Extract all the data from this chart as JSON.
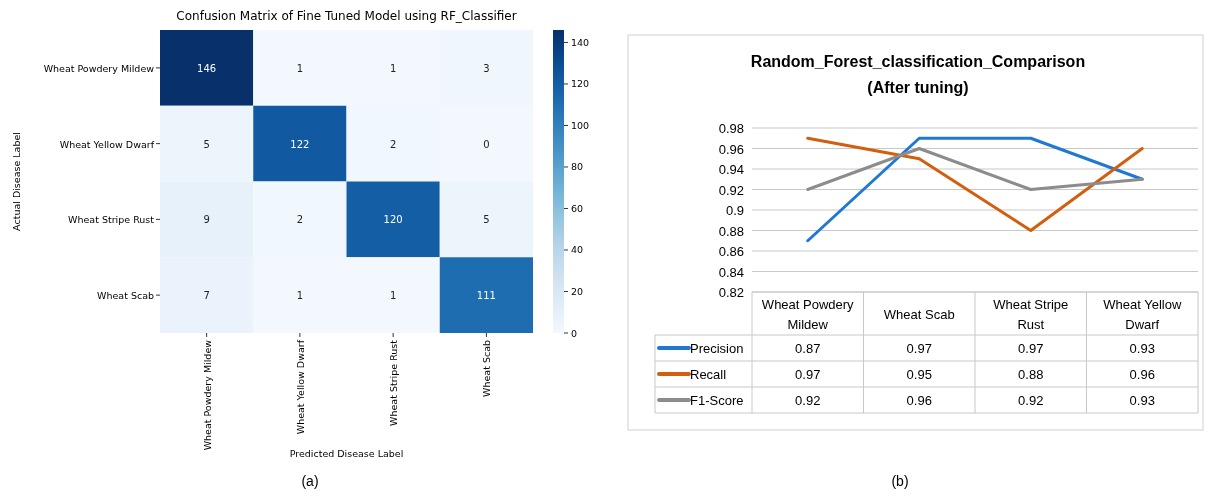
{
  "chart_data": [
    {
      "type": "heatmap",
      "title": "Confusion Matrix of Fine Tuned Model using RF_Classifier",
      "xlabel": "Predicted Disease Label",
      "ylabel": "Actual Disease Label",
      "categories": [
        "Wheat Powdery Mildew",
        "Wheat Yellow Dwarf",
        "Wheat Stripe Rust",
        "Wheat Scab"
      ],
      "y_categories": [
        "Wheat Powdery Mildew",
        "Wheat Yellow Dwarf",
        "Wheat Stripe Rust",
        "Wheat Scab"
      ],
      "cells": [
        [
          146,
          1,
          1,
          3
        ],
        [
          5,
          122,
          2,
          0
        ],
        [
          9,
          2,
          120,
          5
        ],
        [
          7,
          1,
          1,
          111
        ]
      ],
      "clim": [
        0,
        146
      ],
      "cticks": [
        0,
        20,
        40,
        60,
        80,
        100,
        120,
        140
      ],
      "data_labels": true,
      "annotations": [
        "(a)"
      ]
    },
    {
      "type": "line",
      "title": "Random_Forest_classification_Comparison",
      "subtitle": "(After tuning)",
      "categories": [
        "Wheat Powdery Mildew",
        "Wheat Scab",
        "Wheat Stripe Rust",
        "Wheat Yellow Dwarf"
      ],
      "series": [
        {
          "name": "Precision",
          "color": "#1f78d1",
          "values": [
            0.87,
            0.97,
            0.97,
            0.93
          ]
        },
        {
          "name": "Recall",
          "color": "#d35e0d",
          "values": [
            0.97,
            0.95,
            0.88,
            0.96
          ]
        },
        {
          "name": "F1-Score",
          "color": "#8c8c8c",
          "values": [
            0.92,
            0.96,
            0.92,
            0.93
          ]
        }
      ],
      "ylim": [
        0.82,
        0.98
      ],
      "yticks": [
        0.82,
        0.84,
        0.86,
        0.88,
        0.9,
        0.92,
        0.94,
        0.96,
        0.98
      ],
      "grid": "y",
      "data_labels": true,
      "legend": "bottom",
      "annotations": [
        "(b)"
      ]
    }
  ]
}
